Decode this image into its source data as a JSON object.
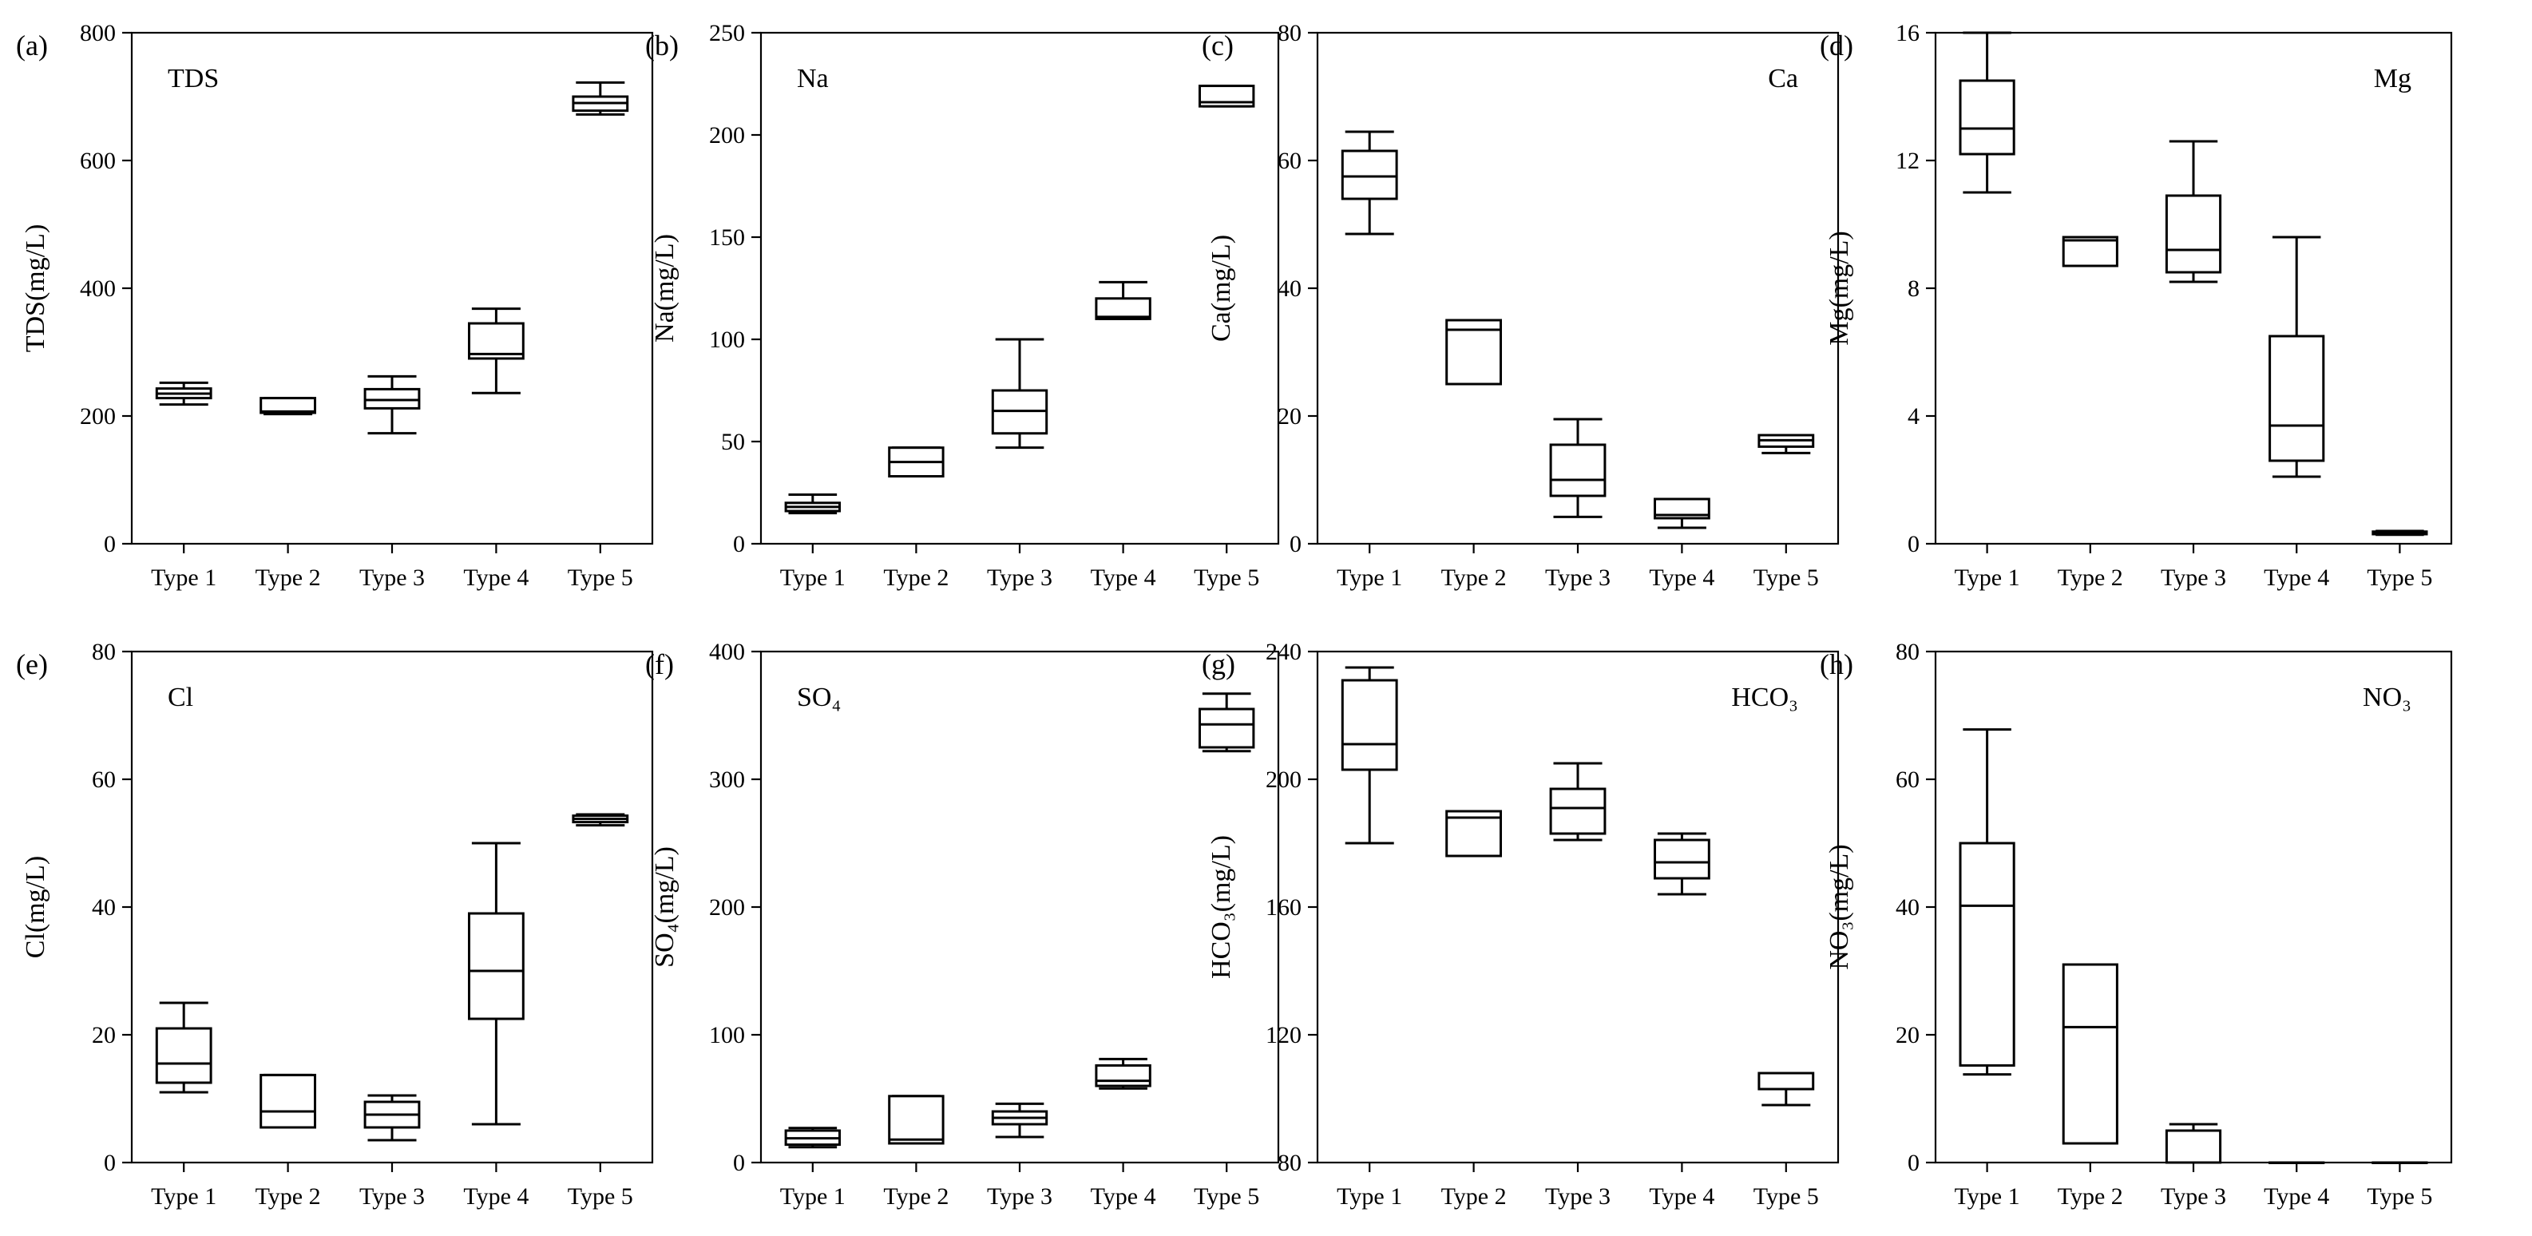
{
  "chart_data": [
    {
      "type": "box",
      "panel_label": "(a)",
      "title": "TDS",
      "title_position": "top-left",
      "ylabel": "TDS(mg/L)",
      "ylim": [
        0,
        800
      ],
      "yticks": [
        0,
        200,
        400,
        600,
        800
      ],
      "categories": [
        "Type 1",
        "Type 2",
        "Type 3",
        "Type 4",
        "Type 5"
      ],
      "boxes": [
        {
          "min": 218,
          "q1": 228,
          "median": 235,
          "q3": 243,
          "max": 252
        },
        {
          "min": 203,
          "q1": 205,
          "median": 207,
          "q3": 228,
          "max": 228
        },
        {
          "min": 173,
          "q1": 212,
          "median": 225,
          "q3": 242,
          "max": 262
        },
        {
          "min": 236,
          "q1": 290,
          "median": 297,
          "q3": 345,
          "max": 368
        },
        {
          "min": 672,
          "q1": 678,
          "median": 690,
          "q3": 700,
          "max": 722
        }
      ]
    },
    {
      "type": "box",
      "panel_label": "(b)",
      "title": "Na",
      "title_position": "top-left",
      "ylabel": "Na(mg/L)",
      "ylim": [
        0,
        250
      ],
      "yticks": [
        0,
        50,
        100,
        150,
        200,
        250
      ],
      "categories": [
        "Type 1",
        "Type 2",
        "Type 3",
        "Type 4",
        "Type 5"
      ],
      "boxes": [
        {
          "min": 15,
          "q1": 16,
          "median": 18,
          "q3": 20,
          "max": 24
        },
        {
          "min": 33,
          "q1": 33,
          "median": 40,
          "q3": 47,
          "max": 47
        },
        {
          "min": 47,
          "q1": 54,
          "median": 65,
          "q3": 75,
          "max": 100
        },
        {
          "min": 110,
          "q1": 110,
          "median": 111,
          "q3": 120,
          "max": 128
        },
        {
          "min": 214,
          "q1": 214,
          "median": 216,
          "q3": 224,
          "max": 224
        }
      ]
    },
    {
      "type": "box",
      "panel_label": "(c)",
      "title": "Ca",
      "title_position": "top-right",
      "ylabel": "Ca(mg/L)",
      "ylim": [
        0,
        80
      ],
      "yticks": [
        0,
        20,
        40,
        60,
        80
      ],
      "categories": [
        "Type 1",
        "Type 2",
        "Type 3",
        "Type 4",
        "Type 5"
      ],
      "boxes": [
        {
          "min": 48.5,
          "q1": 54,
          "median": 57.5,
          "q3": 61.5,
          "max": 64.5
        },
        {
          "min": 25,
          "q1": 25,
          "median": 33.5,
          "q3": 35,
          "max": 35
        },
        {
          "min": 4.2,
          "q1": 7.5,
          "median": 10,
          "q3": 15.5,
          "max": 19.5
        },
        {
          "min": 2.5,
          "q1": 4,
          "median": 4.5,
          "q3": 7,
          "max": 7
        },
        {
          "min": 14.2,
          "q1": 15.2,
          "median": 16.2,
          "q3": 17,
          "max": 17
        }
      ]
    },
    {
      "type": "box",
      "panel_label": "(d)",
      "title": "Mg",
      "title_position": "top-right",
      "ylabel": "Mg(mg/L)",
      "ylim": [
        0,
        16
      ],
      "yticks": [
        0,
        4,
        8,
        12,
        16
      ],
      "categories": [
        "Type 1",
        "Type 2",
        "Type 3",
        "Type 4",
        "Type 5"
      ],
      "boxes": [
        {
          "min": 11,
          "q1": 12.2,
          "median": 13,
          "q3": 14.5,
          "max": 16
        },
        {
          "min": 8.7,
          "q1": 8.7,
          "median": 9.5,
          "q3": 9.6,
          "max": 9.6
        },
        {
          "min": 8.2,
          "q1": 8.5,
          "median": 9.2,
          "q3": 10.9,
          "max": 12.6
        },
        {
          "min": 2.1,
          "q1": 2.6,
          "median": 3.7,
          "q3": 6.5,
          "max": 9.6
        },
        {
          "min": 0.28,
          "q1": 0.3,
          "median": 0.33,
          "q3": 0.38,
          "max": 0.4
        }
      ]
    },
    {
      "type": "box",
      "panel_label": "(e)",
      "title": "Cl",
      "title_position": "top-left",
      "ylabel": "Cl(mg/L)",
      "ylim": [
        0,
        80
      ],
      "yticks": [
        0,
        20,
        40,
        60,
        80
      ],
      "categories": [
        "Type 1",
        "Type 2",
        "Type 3",
        "Type 4",
        "Type 5"
      ],
      "boxes": [
        {
          "min": 11,
          "q1": 12.5,
          "median": 15.5,
          "q3": 21,
          "max": 25
        },
        {
          "min": 5.5,
          "q1": 5.5,
          "median": 8,
          "q3": 13.7,
          "max": 13.7
        },
        {
          "min": 3.5,
          "q1": 5.5,
          "median": 7.5,
          "q3": 9.5,
          "max": 10.5
        },
        {
          "min": 6,
          "q1": 22.5,
          "median": 30,
          "q3": 39,
          "max": 50
        },
        {
          "min": 52.8,
          "q1": 53.3,
          "median": 53.8,
          "q3": 54.3,
          "max": 54.5
        }
      ]
    },
    {
      "type": "box",
      "panel_label": "(f)",
      "title": "SO₄",
      "title_position": "top-left",
      "ylabel": "SO₄(mg/L)",
      "ylim": [
        0,
        400
      ],
      "yticks": [
        0,
        100,
        200,
        300,
        400
      ],
      "categories": [
        "Type 1",
        "Type 2",
        "Type 3",
        "Type 4",
        "Type 5"
      ],
      "boxes": [
        {
          "min": 12,
          "q1": 14,
          "median": 19,
          "q3": 25,
          "max": 27
        },
        {
          "min": 15,
          "q1": 15,
          "median": 18,
          "q3": 52,
          "max": 52
        },
        {
          "min": 20,
          "q1": 30,
          "median": 35,
          "q3": 40,
          "max": 46
        },
        {
          "min": 58,
          "q1": 60,
          "median": 64,
          "q3": 76,
          "max": 81
        },
        {
          "min": 322,
          "q1": 325,
          "median": 343,
          "q3": 355,
          "max": 367
        }
      ]
    },
    {
      "type": "box",
      "panel_label": "(g)",
      "title": "HCO₃",
      "title_position": "top-right",
      "ylabel": "HCO₃(mg/L)",
      "ylim": [
        80,
        240
      ],
      "yticks": [
        80,
        120,
        160,
        200,
        240
      ],
      "categories": [
        "Type 1",
        "Type 2",
        "Type 3",
        "Type 4",
        "Type 5"
      ],
      "boxes": [
        {
          "min": 180,
          "q1": 203,
          "median": 211,
          "q3": 231,
          "max": 235
        },
        {
          "min": 176,
          "q1": 176,
          "median": 188,
          "q3": 190,
          "max": 190
        },
        {
          "min": 181,
          "q1": 183,
          "median": 191,
          "q3": 197,
          "max": 205
        },
        {
          "min": 164,
          "q1": 169,
          "median": 174,
          "q3": 181,
          "max": 183
        },
        {
          "min": 98,
          "q1": 103,
          "median": 103,
          "q3": 108,
          "max": 108
        }
      ]
    },
    {
      "type": "box",
      "panel_label": "(h)",
      "title": "NO₃",
      "title_position": "top-right",
      "ylabel": "NO₃(mg/L)",
      "ylim": [
        0,
        80
      ],
      "yticks": [
        0,
        20,
        40,
        60,
        80
      ],
      "categories": [
        "Type 1",
        "Type 2",
        "Type 3",
        "Type 4",
        "Type 5"
      ],
      "boxes": [
        {
          "min": 13.8,
          "q1": 15.2,
          "median": 40.2,
          "q3": 50,
          "max": 67.8
        },
        {
          "min": 3,
          "q1": 3,
          "median": 21.2,
          "q3": 31,
          "max": 31
        },
        {
          "min": 0,
          "q1": 0,
          "median": 0,
          "q3": 5,
          "max": 6
        },
        {
          "min": 0,
          "q1": 0,
          "median": 0,
          "q3": 0,
          "max": 0
        },
        {
          "min": 0,
          "q1": 0,
          "median": 0,
          "q3": 0,
          "max": 0
        }
      ]
    }
  ]
}
